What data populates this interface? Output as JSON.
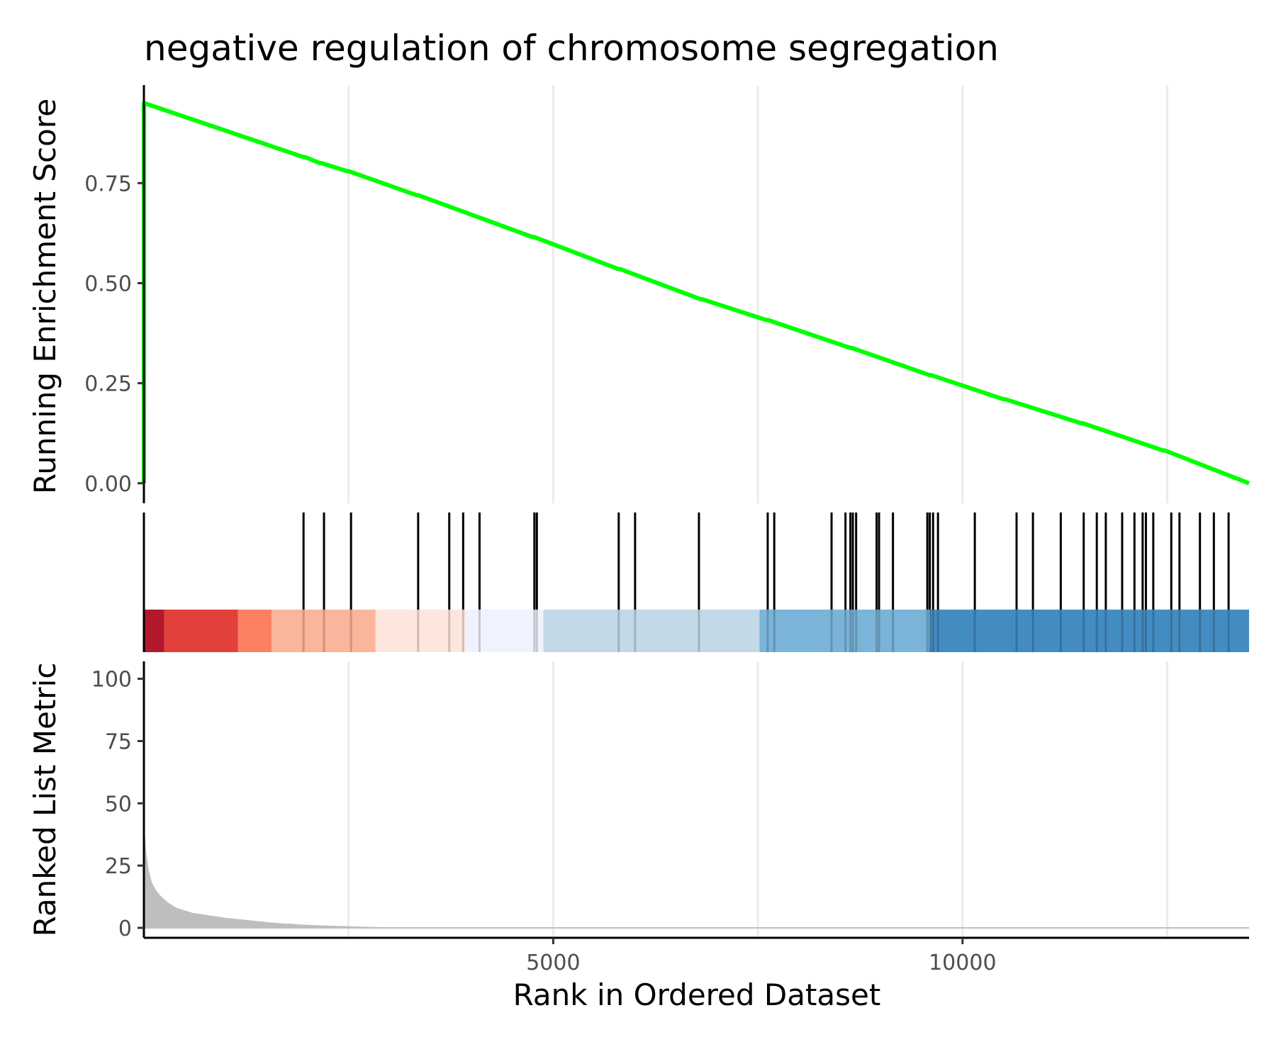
{
  "chart_data": {
    "type": "line",
    "title": "negative regulation of chromosome segregation",
    "xlabel": "Rank in Ordered Dataset",
    "xlim": [
      0,
      13500
    ],
    "x_ticks": [
      5000,
      10000
    ],
    "x_tick_labels": [
      "5000",
      "10000"
    ],
    "grid_x": [
      2500,
      5000,
      7500,
      10000,
      12500
    ],
    "panels": {
      "running_score": {
        "ylabel": "Running Enrichment Score",
        "ylim": [
          -0.05,
          0.995
        ],
        "y_ticks": [
          0.0,
          0.25,
          0.5,
          0.75
        ],
        "y_tick_labels": [
          "0.00",
          "0.25",
          "0.50",
          "0.75"
        ],
        "line_color": "#00ff00",
        "series": [
          {
            "x": [
              0,
              1,
              2,
              3,
              1950,
              1970,
              2150,
              2170,
              2480,
              2500,
              3330,
              3350,
              4750,
              4770,
              5800,
              5820,
              6800,
              6820,
              7600,
              7620,
              8630,
              8650,
              9600,
              9620,
              10500,
              10520,
              11450,
              11470,
              12450,
              12470,
              13500
            ],
            "y": [
              0.0,
              0.95,
              0.95,
              0.95,
              0.815,
              0.815,
              0.8,
              0.8,
              0.78,
              0.78,
              0.72,
              0.72,
              0.615,
              0.615,
              0.535,
              0.535,
              0.46,
              0.46,
              0.408,
              0.408,
              0.338,
              0.338,
              0.27,
              0.27,
              0.21,
              0.21,
              0.15,
              0.15,
              0.082,
              0.082,
              0.0
            ]
          }
        ]
      },
      "gene_hits": {
        "positions": [
          1950,
          2200,
          2530,
          3350,
          3730,
          3900,
          4100,
          4770,
          4800,
          5800,
          6000,
          6780,
          7620,
          7700,
          8400,
          8570,
          8630,
          8660,
          8700,
          8950,
          8980,
          9150,
          9570,
          9600,
          9640,
          9700,
          10150,
          10660,
          10860,
          11200,
          11480,
          11640,
          11750,
          11950,
          12100,
          12200,
          12240,
          12330,
          12550,
          12650,
          12900,
          13070,
          13250
        ]
      },
      "color_band": {
        "segments": [
          {
            "from": 0,
            "to": 250,
            "color": "#b2182b"
          },
          {
            "from": 250,
            "to": 1150,
            "color": "#e2403a"
          },
          {
            "from": 1150,
            "to": 1560,
            "color": "#fb8060"
          },
          {
            "from": 1560,
            "to": 2830,
            "color": "#fbb59b"
          },
          {
            "from": 2830,
            "to": 3930,
            "color": "#fde6de"
          },
          {
            "from": 3930,
            "to": 4880,
            "color": "#eff3fe"
          },
          {
            "from": 4880,
            "to": 7520,
            "color": "#c3d9e8"
          },
          {
            "from": 7520,
            "to": 9600,
            "color": "#7ab4d8"
          },
          {
            "from": 9600,
            "to": 13500,
            "color": "#438cc2"
          }
        ]
      },
      "ranked_metric": {
        "ylabel": "Ranked List Metric",
        "ylim": [
          -4,
          107
        ],
        "y_ticks": [
          0,
          25,
          50,
          75,
          100
        ],
        "y_tick_labels": [
          "0",
          "25",
          "50",
          "75",
          "100"
        ],
        "fill_color": "#bebebe",
        "x": [
          0,
          10,
          30,
          60,
          100,
          150,
          200,
          300,
          400,
          600,
          800,
          1000,
          1300,
          1600,
          2000,
          2500,
          3000,
          13500
        ],
        "y": [
          45,
          38,
          30,
          23,
          18,
          15,
          13,
          10,
          8,
          6,
          5,
          4,
          3,
          2,
          1.2,
          0.6,
          0.2,
          0.0
        ]
      }
    }
  }
}
